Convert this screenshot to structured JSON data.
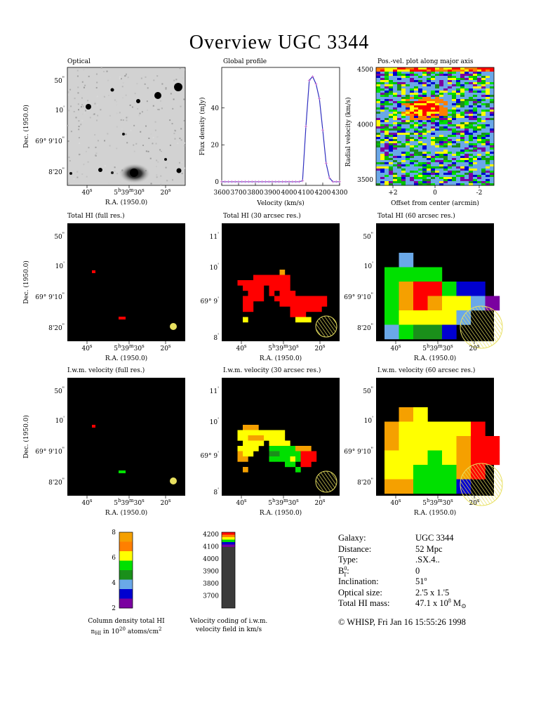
{
  "title": "Overview UGC 3344",
  "panels": {
    "optical": {
      "title": "Optical"
    },
    "profile": {
      "title": "Global profile",
      "xlabel": "Velocity (km/s)",
      "ylabel": "Flux density (mJy)"
    },
    "pv": {
      "title": "Pos.-vel. plot along major axis",
      "xlabel": "Offset from center (arcmin)",
      "ylabel": "Radial velocity (km/s)"
    },
    "hi_full": {
      "title": "Total HI (full res.)"
    },
    "hi_30": {
      "title": "Total HI (30 arcsec res.)"
    },
    "hi_60": {
      "title": "Total HI (60 arcsec res.)"
    },
    "vel_full": {
      "title": "I.w.m. velocity (full res.)"
    },
    "vel_30": {
      "title": "I.w.m. velocity (30 arcsec res.)"
    },
    "vel_60": {
      "title": "I.w.m. velocity (60 arcsec res.)"
    }
  },
  "axes": {
    "ra_label": "R.A. (1950.0)",
    "dec_label": "Dec. (1950.0)",
    "ra_ticks": {
      "t40": "40",
      "t30": "30",
      "t20": "20",
      "sec": "s",
      "hh": "5",
      "h": "h",
      "mm": "39",
      "m": "m"
    },
    "dec_ticks_a": {
      "50": "50",
      "10": "10",
      "deg": "69",
      "mid": "9'10",
      "last": "8'20",
      "arcsec": "\"",
      "arcmin": "'"
    },
    "dec_ticks_b": {
      "11": "11",
      "10": "10",
      "deg": "69",
      "mid": "9",
      "last": "8",
      "arcmin": "'"
    }
  },
  "colorbars": {
    "column_density": {
      "ticks": [
        "8",
        "6",
        "4",
        "2"
      ],
      "caption1": "Column density total HI",
      "caption2_a": "n",
      "caption2_sub": "HI",
      "caption2_b": " in 10",
      "caption2_sup": "20",
      "caption2_c": " atoms/cm",
      "caption2_sup2": "2",
      "colors": [
        "#f5a000",
        "#ff7f00",
        "#ffff00",
        "#00e000",
        "#1a8f1a",
        "#6aa8e8",
        "#0000d0",
        "#7a00a0"
      ]
    },
    "velocity": {
      "ticks": [
        "4200",
        "4100",
        "4000",
        "3900",
        "3800",
        "3700"
      ],
      "caption1": "Velocity coding of i.w.m.",
      "caption2": "velocity field in km/s"
    }
  },
  "galaxy_info": {
    "rows": [
      {
        "key": "Galaxy:",
        "value": "UGC 3344"
      },
      {
        "key": "Distance:",
        "value": "52 Mpc"
      },
      {
        "key": "Type:",
        "value": ".SX.4.."
      },
      {
        "key": "B",
        "key_sup": "0",
        "key_sub": "T",
        "key_tail": ":",
        "value": "0"
      },
      {
        "key": "Inclination:",
        "value": "51",
        "value_sup": "o"
      },
      {
        "key": "Optical size:",
        "value": "2.'5 x 1.'5"
      },
      {
        "key": "Total HI mass:",
        "value": "47.1 x 10",
        "value_sup": "8",
        "value_tail": " M",
        "value_sub": "⊙"
      }
    ],
    "footer": "© WHISP, Fri Jan 16 15:55:26 1998"
  },
  "chart_data": [
    {
      "type": "line",
      "title": "Global profile",
      "xlabel": "Velocity (km/s)",
      "ylabel": "Flux density (mJy)",
      "xlim": [
        3600,
        4300
      ],
      "ylim": [
        -2,
        62
      ],
      "x_ticks": [
        3600,
        3700,
        3800,
        3900,
        4000,
        4100,
        4200,
        4300
      ],
      "y_ticks": [
        0,
        20,
        40
      ],
      "x": [
        3600,
        3620,
        3640,
        3660,
        3680,
        3700,
        3720,
        3740,
        3760,
        3780,
        3800,
        3820,
        3840,
        3860,
        3880,
        3900,
        3920,
        3940,
        3960,
        3980,
        4000,
        4020,
        4040,
        4060,
        4080,
        4100,
        4120,
        4140,
        4160,
        4180,
        4200,
        4220,
        4240,
        4260,
        4280,
        4300
      ],
      "y": [
        0,
        0,
        0,
        0,
        0,
        0,
        0,
        0,
        0,
        0,
        0,
        0,
        0,
        0,
        0,
        0,
        0,
        0,
        0,
        0,
        0,
        0,
        0,
        0,
        0.5,
        30,
        55,
        57,
        53,
        45,
        28,
        10,
        2,
        0,
        0,
        0
      ],
      "color": "#3030c0",
      "marker_color": "#d070d0"
    },
    {
      "type": "heatmap",
      "title": "Pos.-vel. plot along major axis",
      "xlabel": "Offset from center (arcmin)",
      "ylabel": "Radial velocity (km/s)",
      "x_ticks": [
        "+2",
        "0",
        "-2"
      ],
      "y_ticks": [
        4500,
        4000,
        3500
      ],
      "ylim": [
        3450,
        4520
      ]
    }
  ]
}
